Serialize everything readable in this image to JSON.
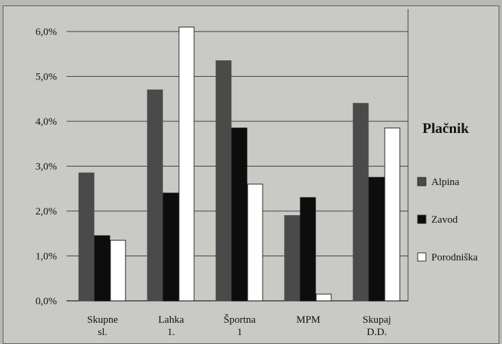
{
  "chart_data": {
    "type": "bar",
    "title": "",
    "xlabel": "",
    "ylabel": "",
    "ylim": [
      0,
      6.5
    ],
    "yticks": [
      "0,0%",
      "1,0%",
      "2,0%",
      "3,0%",
      "4,0%",
      "5,0%",
      "6,0%"
    ],
    "grid": true,
    "legend_title": "Plačnik",
    "legend_placement": "right",
    "categories": [
      [
        "Skupne",
        "sl."
      ],
      [
        "Lahka",
        "1."
      ],
      [
        "Športna",
        "1"
      ],
      [
        "MPM"
      ],
      [
        "Skupaj",
        "D.D."
      ]
    ],
    "series": [
      {
        "name": "Alpina",
        "color": "#4a4a4a",
        "values": [
          2.85,
          4.7,
          5.35,
          1.9,
          4.4
        ]
      },
      {
        "name": "Zavod",
        "color": "#0d0d0d",
        "values": [
          1.45,
          2.4,
          3.85,
          2.3,
          2.75
        ]
      },
      {
        "name": "Porodniška",
        "color": "#ffffff",
        "values": [
          1.35,
          6.1,
          2.6,
          0.15,
          3.85
        ]
      }
    ]
  }
}
